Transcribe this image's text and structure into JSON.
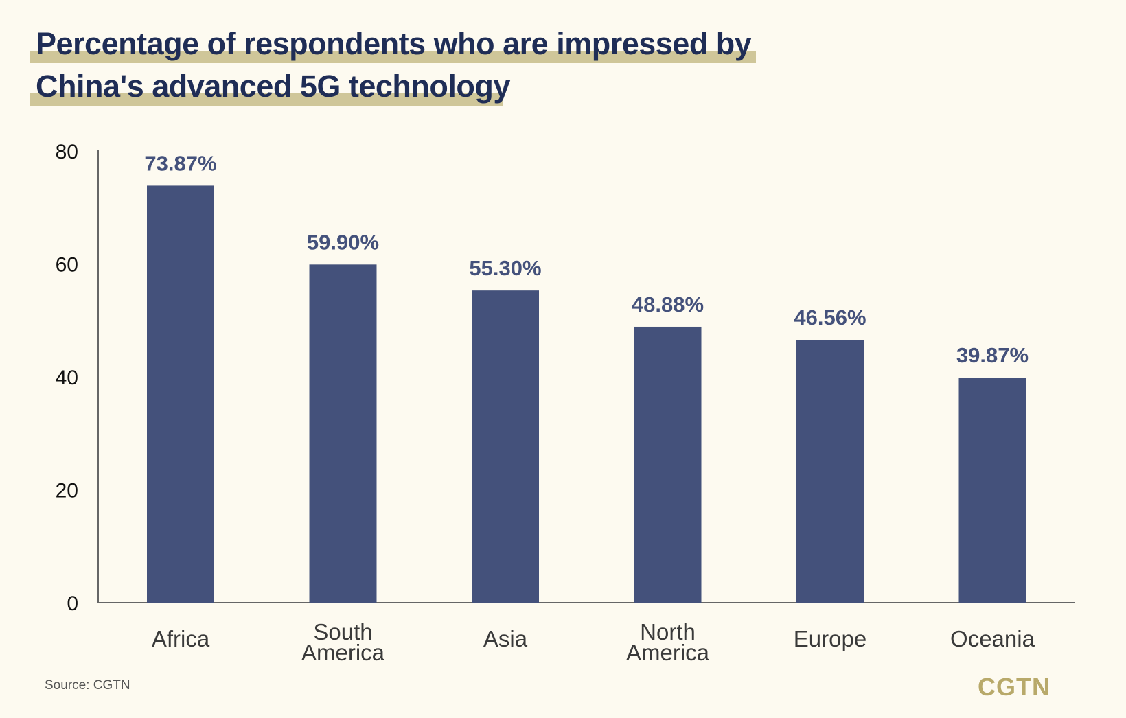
{
  "title": {
    "line1": "Percentage of respondents who are impressed by",
    "line2": "China's advanced 5G technology"
  },
  "colors": {
    "bar": "#44517b",
    "title": "#1f2d56",
    "highlight": "#cfc699",
    "background": "#fdfaf0",
    "logo": "#b8a96a"
  },
  "chart_data": {
    "type": "bar",
    "title": "Percentage of respondents who are impressed by China's advanced 5G technology",
    "xlabel": "",
    "ylabel": "",
    "ylim": [
      0,
      80
    ],
    "yticks": [
      0,
      20,
      40,
      60,
      80
    ],
    "categories": [
      [
        "Africa"
      ],
      [
        "South",
        "America"
      ],
      [
        "Asia"
      ],
      [
        "North",
        "America"
      ],
      [
        "Europe"
      ],
      [
        "Oceania"
      ]
    ],
    "values": [
      73.87,
      59.9,
      55.3,
      48.88,
      46.56,
      39.87
    ],
    "value_labels": [
      "73.87%",
      "59.90%",
      "55.30%",
      "48.88%",
      "46.56%",
      "39.87%"
    ],
    "grid": false
  },
  "footer": {
    "source": "Source: CGTN",
    "logo": "CGTN"
  }
}
